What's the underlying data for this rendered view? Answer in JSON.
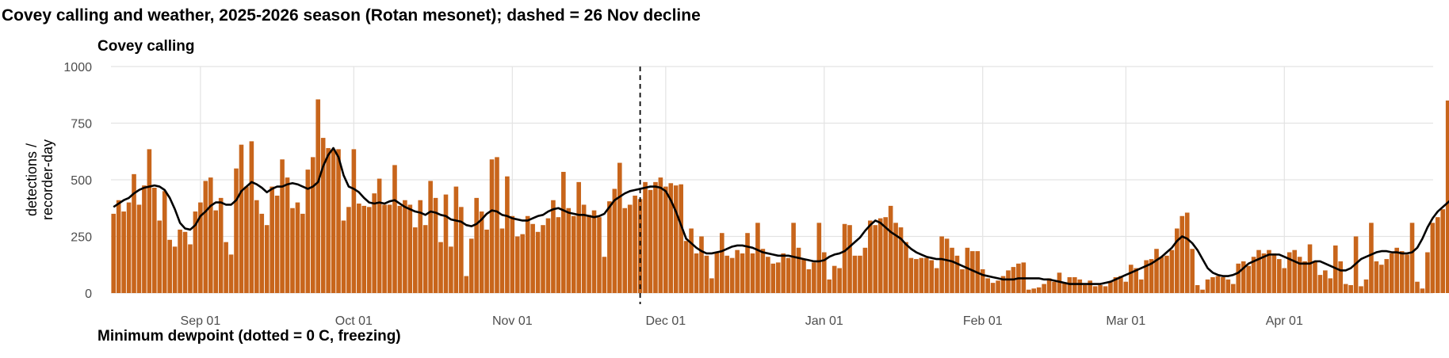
{
  "title": "Covey calling and weather, 2025-2026 season (Rotan mesonet); dashed = 26 Nov decline",
  "panel_titles": {
    "top": "Covey calling",
    "bottom": "Minimum dewpoint (dotted = 0 C, freezing)"
  },
  "colors": {
    "bar": "#C8651B",
    "line": "#000000",
    "grid": "#E3E3E3",
    "vline": "#000000"
  },
  "chart_data": {
    "type": "bar",
    "ylabel": [
      "detections /",
      "recorder-day"
    ],
    "xlabel": "",
    "ylim": [
      0,
      1000
    ],
    "yticks": [
      0,
      250,
      500,
      750,
      1000
    ],
    "x_start": "2025-08-15",
    "x_ticks": [
      {
        "date": "2025-09-01",
        "label": "Sep 01"
      },
      {
        "date": "2025-10-01",
        "label": "Oct 01"
      },
      {
        "date": "2025-11-01",
        "label": "Nov 01"
      },
      {
        "date": "2025-12-01",
        "label": "Dec 01"
      },
      {
        "date": "2026-01-01",
        "label": "Jan 01"
      },
      {
        "date": "2026-02-01",
        "label": "Feb 01"
      },
      {
        "date": "2026-03-01",
        "label": "Mar 01"
      },
      {
        "date": "2026-04-01",
        "label": "Apr 01"
      }
    ],
    "vline": "2025-11-26",
    "series": [
      {
        "kind": "bar",
        "values": [
          350,
          410,
          360,
          400,
          525,
          390,
          475,
          635,
          465,
          320,
          450,
          235,
          205,
          280,
          270,
          215,
          360,
          400,
          495,
          510,
          365,
          420,
          225,
          170,
          550,
          655,
          470,
          670,
          410,
          350,
          300,
          470,
          430,
          590,
          510,
          375,
          400,
          350,
          545,
          600,
          855,
          685,
          640,
          635,
          635,
          320,
          380,
          635,
          395,
          385,
          380,
          440,
          505,
          390,
          390,
          565,
          385,
          410,
          390,
          290,
          410,
          300,
          495,
          420,
          225,
          435,
          205,
          470,
          380,
          75,
          240,
          420,
          360,
          280,
          590,
          600,
          285,
          515,
          340,
          250,
          260,
          340,
          305,
          270,
          300,
          330,
          410,
          335,
          535,
          375,
          340,
          490,
          390,
          345,
          365,
          335,
          160,
          405,
          460,
          575,
          375,
          390,
          430,
          415,
          490,
          455,
          490,
          510,
          470,
          485,
          475,
          480,
          230,
          285,
          175,
          250,
          165,
          65,
          180,
          265,
          165,
          155,
          190,
          175,
          265,
          175,
          310,
          195,
          160,
          130,
          135,
          175,
          155,
          310,
          200,
          150,
          105,
          135,
          310,
          180,
          60,
          120,
          110,
          305,
          300,
          165,
          165,
          200,
          320,
          300,
          330,
          335,
          385,
          310,
          290,
          225,
          155,
          150,
          155,
          155,
          145,
          110,
          250,
          240,
          200,
          165,
          105,
          200,
          185,
          185,
          105,
          65,
          45,
          55,
          75,
          100,
          115,
          130,
          135,
          15,
          20,
          25,
          40,
          65,
          50,
          90,
          45,
          70,
          70,
          60,
          35,
          55,
          30,
          35,
          30,
          50,
          70,
          75,
          50,
          125,
          110,
          60,
          145,
          150,
          195,
          160,
          165,
          190,
          285,
          340,
          355,
          195,
          35,
          15,
          60,
          70,
          75,
          70,
          60,
          40,
          130,
          140,
          120,
          160,
          190,
          175,
          190,
          175,
          150,
          110,
          180,
          190,
          160,
          140,
          215,
          140,
          80,
          100,
          65,
          210,
          140,
          40,
          35,
          250,
          30,
          60,
          310,
          140,
          125,
          150,
          175,
          200,
          185,
          170,
          310,
          50,
          20,
          180,
          310,
          335,
          370,
          850,
          360,
          290,
          365
        ]
      },
      {
        "kind": "line",
        "name": "7-day mean",
        "values": [
          380,
          395,
          410,
          420,
          440,
          455,
          465,
          470,
          475,
          470,
          455,
          420,
          370,
          310,
          285,
          280,
          300,
          340,
          360,
          385,
          400,
          400,
          390,
          390,
          410,
          450,
          470,
          490,
          480,
          465,
          445,
          460,
          470,
          470,
          480,
          485,
          480,
          470,
          460,
          470,
          490,
          560,
          610,
          640,
          600,
          520,
          470,
          460,
          445,
          420,
          400,
          395,
          400,
          395,
          405,
          410,
          395,
          380,
          370,
          360,
          355,
          345,
          360,
          355,
          345,
          340,
          325,
          320,
          315,
          300,
          295,
          305,
          325,
          350,
          365,
          360,
          345,
          340,
          330,
          325,
          320,
          320,
          330,
          340,
          345,
          360,
          370,
          375,
          365,
          355,
          350,
          345,
          345,
          340,
          335,
          340,
          350,
          380,
          410,
          425,
          440,
          450,
          455,
          460,
          465,
          470,
          470,
          465,
          450,
          410,
          360,
          300,
          240,
          220,
          200,
          185,
          175,
          175,
          180,
          185,
          195,
          205,
          210,
          210,
          205,
          200,
          190,
          180,
          175,
          170,
          165,
          165,
          165,
          160,
          155,
          150,
          145,
          140,
          140,
          145,
          160,
          170,
          175,
          185,
          205,
          225,
          245,
          275,
          300,
          320,
          310,
          290,
          270,
          255,
          240,
          215,
          195,
          180,
          170,
          160,
          155,
          150,
          150,
          145,
          140,
          130,
          120,
          110,
          100,
          90,
          80,
          75,
          70,
          65,
          60,
          60,
          60,
          65,
          65,
          65,
          65,
          65,
          60,
          60,
          55,
          50,
          45,
          40,
          40,
          40,
          40,
          40,
          40,
          40,
          45,
          50,
          60,
          70,
          80,
          90,
          100,
          110,
          120,
          130,
          145,
          160,
          180,
          200,
          230,
          250,
          240,
          220,
          190,
          150,
          110,
          90,
          80,
          75,
          75,
          80,
          90,
          110,
          130,
          140,
          150,
          160,
          170,
          170,
          170,
          160,
          150,
          140,
          130,
          130,
          130,
          140,
          140,
          130,
          120,
          110,
          100,
          100,
          110,
          130,
          150,
          160,
          170,
          180,
          185,
          185,
          180,
          180,
          175,
          175,
          180,
          200,
          240,
          290,
          330,
          360,
          380,
          400,
          420,
          440
        ]
      }
    ]
  }
}
